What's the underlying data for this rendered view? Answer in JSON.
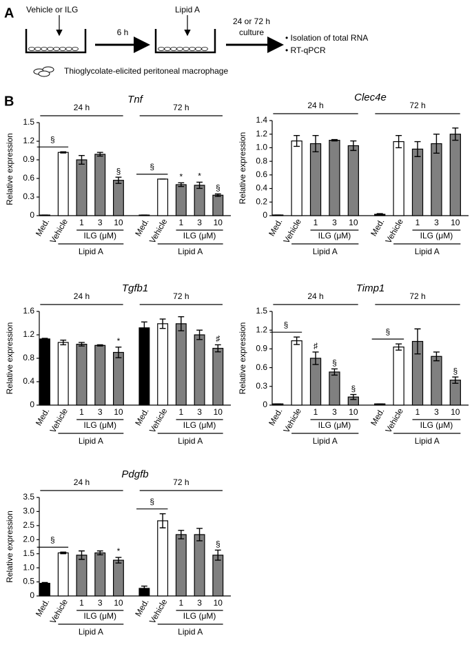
{
  "panel_a": {
    "label": "A",
    "pretreatment": "Vehicle or ILG",
    "interval": "6 h",
    "stimulus": "Lipid A",
    "culture_time": "24 or 72 h",
    "culture_word": "culture",
    "outputs": [
      "• Isolation of total RNA",
      "• RT-qPCR"
    ],
    "cell_legend": "Thioglycolate-elicited peritoneal macrophage"
  },
  "panel_b_label": "B",
  "chart_data": [
    {
      "type": "bar",
      "title": "Tnf",
      "ylabel": "Relative expression",
      "ylim": [
        0,
        1.5
      ],
      "yticks": [
        0,
        0.3,
        0.6,
        0.9,
        1.2,
        1.5
      ],
      "categories": [
        "Med.",
        "Vehicle",
        "1",
        "3",
        "10",
        "Med.",
        "Vehicle",
        "1",
        "3",
        "10"
      ],
      "groups": [
        {
          "name": "24 h",
          "ilg": "ILG (μM)",
          "stimulus": "Lipid A"
        },
        {
          "name": "72 h",
          "ilg": "ILG (μM)",
          "stimulus": "Lipid A"
        }
      ],
      "values": [
        0.01,
        1.02,
        0.9,
        0.99,
        0.57,
        0.01,
        0.59,
        0.5,
        0.49,
        0.33
      ],
      "errors": [
        0,
        0.01,
        0.07,
        0.03,
        0.05,
        0,
        0,
        0.03,
        0.05,
        0.02
      ],
      "colors": [
        "#000000",
        "#ffffff",
        "#808080",
        "#808080",
        "#808080",
        "#000000",
        "#ffffff",
        "#808080",
        "#808080",
        "#808080"
      ],
      "markers": [
        null,
        null,
        null,
        null,
        "§",
        null,
        null,
        "*",
        "*",
        "§"
      ],
      "bracket_markers": [
        null,
        "§",
        null,
        null,
        null,
        null,
        "§",
        null,
        null,
        null
      ]
    },
    {
      "type": "bar",
      "title": "Clec4e",
      "ylabel": "Relative expression",
      "ylim": [
        0,
        1.4
      ],
      "yticks": [
        0,
        0.2,
        0.4,
        0.6,
        0.8,
        {
          "value": 1,
          "label": "1.0"
        },
        1.2,
        1.4
      ],
      "categories": [
        "Med.",
        "Vehicle",
        "1",
        "3",
        "10",
        "Med.",
        "Vehicle",
        "1",
        "3",
        "10"
      ],
      "groups": [
        {
          "name": "24 h",
          "ilg": "ILG (μM)",
          "stimulus": "Lipid A"
        },
        {
          "name": "72 h",
          "ilg": "ILG (μM)",
          "stimulus": "Lipid A"
        }
      ],
      "values": [
        0.01,
        1.1,
        1.06,
        1.11,
        1.03,
        0.02,
        1.09,
        0.98,
        1.06,
        1.2
      ],
      "errors": [
        0,
        0.08,
        0.12,
        0.01,
        0.07,
        0.01,
        0.09,
        0.11,
        0.14,
        0.09
      ],
      "colors": [
        "#000000",
        "#ffffff",
        "#808080",
        "#808080",
        "#808080",
        "#000000",
        "#ffffff",
        "#808080",
        "#808080",
        "#808080"
      ],
      "markers": [
        null,
        null,
        null,
        null,
        null,
        null,
        null,
        null,
        null,
        null
      ],
      "bracket_markers": [
        null,
        null,
        null,
        null,
        null,
        null,
        null,
        null,
        null,
        null
      ]
    },
    {
      "type": "bar",
      "title": "Tgfb1",
      "ylabel": "Relative expression",
      "ylim": [
        0,
        1.6
      ],
      "yticks": [
        0,
        0.4,
        0.8,
        1.2,
        1.6
      ],
      "categories": [
        "Med.",
        "Vehicle",
        "1",
        "3",
        "10",
        "Med.",
        "Vehicle",
        "1",
        "3",
        "10"
      ],
      "groups": [
        {
          "name": "24 h",
          "ilg": "ILG (μM)",
          "stimulus": "Lipid A"
        },
        {
          "name": "72 h",
          "ilg": "ILG (μM)",
          "stimulus": "Lipid A"
        }
      ],
      "values": [
        1.13,
        1.07,
        1.04,
        1.02,
        0.9,
        1.32,
        1.39,
        1.39,
        1.2,
        0.97
      ],
      "errors": [
        0.01,
        0.04,
        0.03,
        0.01,
        0.09,
        0.1,
        0.08,
        0.12,
        0.08,
        0.06
      ],
      "colors": [
        "#000000",
        "#ffffff",
        "#808080",
        "#808080",
        "#808080",
        "#000000",
        "#ffffff",
        "#808080",
        "#808080",
        "#808080"
      ],
      "markers": [
        null,
        null,
        null,
        null,
        "*",
        null,
        null,
        null,
        null,
        "♯"
      ],
      "bracket_markers": [
        null,
        null,
        null,
        null,
        null,
        null,
        null,
        null,
        null,
        null
      ]
    },
    {
      "type": "bar",
      "title": "Timp1",
      "ylabel": "Relative expression",
      "ylim": [
        0,
        1.5
      ],
      "yticks": [
        0,
        0.3,
        0.6,
        0.9,
        1.2,
        1.5
      ],
      "categories": [
        "Med.",
        "Vehicle",
        "1",
        "3",
        "10",
        "Med.",
        "Vehicle",
        "1",
        "3",
        "10"
      ],
      "groups": [
        {
          "name": "24 h",
          "ilg": "ILG (μM)",
          "stimulus": "Lipid A"
        },
        {
          "name": "72 h",
          "ilg": "ILG (μM)",
          "stimulus": "Lipid A"
        }
      ],
      "values": [
        0.02,
        1.03,
        0.75,
        0.53,
        0.13,
        0.02,
        0.93,
        1.02,
        0.78,
        0.4
      ],
      "errors": [
        0,
        0.06,
        0.1,
        0.05,
        0.04,
        0,
        0.05,
        0.2,
        0.07,
        0.05
      ],
      "colors": [
        "#000000",
        "#ffffff",
        "#808080",
        "#808080",
        "#808080",
        "#000000",
        "#ffffff",
        "#808080",
        "#808080",
        "#808080"
      ],
      "markers": [
        null,
        null,
        "♯",
        "§",
        "§",
        null,
        null,
        null,
        null,
        "§"
      ],
      "bracket_markers": [
        null,
        "§",
        null,
        null,
        null,
        null,
        "§",
        null,
        null,
        null
      ]
    },
    {
      "type": "bar",
      "title": "Pdgfb",
      "ylabel": "Relative expression",
      "ylim": [
        0,
        3.5
      ],
      "yticks": [
        0,
        0.5,
        {
          "value": 1,
          "label": "1.0"
        },
        1.5,
        {
          "value": 2,
          "label": "2.0"
        },
        2.5,
        {
          "value": 3,
          "label": "3.0"
        },
        3.5
      ],
      "categories": [
        "Med.",
        "Vehicle",
        "1",
        "3",
        "10",
        "Med.",
        "Vehicle",
        "1",
        "3",
        "10"
      ],
      "groups": [
        {
          "name": "24 h",
          "ilg": "ILG (μM)",
          "stimulus": "Lipid A"
        },
        {
          "name": "72 h",
          "ilg": "ILG (μM)",
          "stimulus": "Lipid A"
        }
      ],
      "values": [
        0.45,
        1.53,
        1.45,
        1.53,
        1.27,
        0.27,
        2.67,
        2.18,
        2.18,
        1.45
      ],
      "errors": [
        0.03,
        0.03,
        0.15,
        0.07,
        0.1,
        0.08,
        0.25,
        0.15,
        0.22,
        0.18
      ],
      "colors": [
        "#000000",
        "#ffffff",
        "#808080",
        "#808080",
        "#808080",
        "#000000",
        "#ffffff",
        "#808080",
        "#808080",
        "#808080"
      ],
      "markers": [
        null,
        null,
        null,
        null,
        "*",
        null,
        null,
        null,
        null,
        "§"
      ],
      "bracket_markers": [
        null,
        "§",
        null,
        null,
        null,
        null,
        "§",
        null,
        null,
        null
      ]
    }
  ]
}
